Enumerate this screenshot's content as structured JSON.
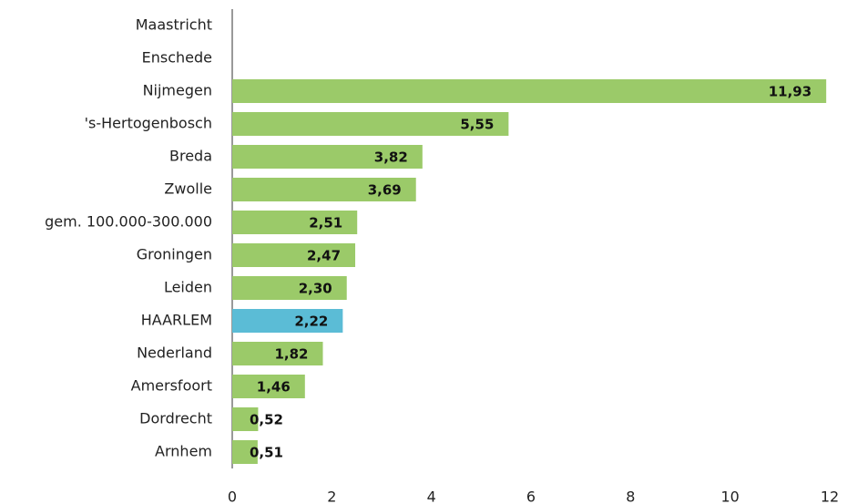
{
  "chart_data": {
    "type": "barh",
    "categories": [
      "Maastricht",
      "Enschede",
      "Nijmegen",
      "'s-Hertogenbosch",
      "Breda",
      "Zwolle",
      "gem. 100.000-300.000",
      "Groningen",
      "Leiden",
      "HAARLEM",
      "Nederland",
      "Amersfoort",
      "Dordrecht",
      "Arnhem"
    ],
    "values": [
      null,
      null,
      11.93,
      5.55,
      3.82,
      3.69,
      2.51,
      2.47,
      2.3,
      2.22,
      1.82,
      1.46,
      0.52,
      0.51
    ],
    "value_labels": [
      null,
      null,
      "11,93",
      "5,55",
      "3,82",
      "3,69",
      "2,51",
      "2,47",
      "2,30",
      "2,22",
      "1,82",
      "1,46",
      "0,52",
      "0,51"
    ],
    "colors": [
      "#9bca69",
      "#9bca69",
      "#9bca69",
      "#9bca69",
      "#9bca69",
      "#9bca69",
      "#9bca69",
      "#9bca69",
      "#9bca69",
      "#5bbcd6",
      "#9bca69",
      "#9bca69",
      "#9bca69",
      "#9bca69"
    ],
    "xlim": [
      0,
      12
    ],
    "xticks": [
      0,
      2,
      4,
      6,
      8,
      10,
      12
    ],
    "grid": false
  }
}
